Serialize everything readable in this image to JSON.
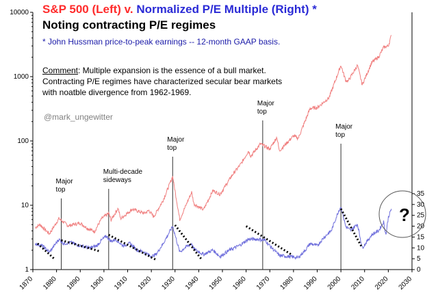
{
  "title": {
    "part_red": "S&P 500 (Left) v.",
    "part_blue": "Normalized P/E Multiple (Right) *",
    "line2": "Noting contracting P/E regimes"
  },
  "subtitle": "* John Hussman price-to-peak earnings -- 12-month GAAP basis.",
  "comment": {
    "label": "Comment",
    "text": ": Multiple expansion is the essence of a bull market. Contracting P/E regimes have characterized secular bear markets with noatble divergence from 1962-1969."
  },
  "handle": "@mark_ungewitter",
  "question_mark": "?",
  "colors": {
    "sp500": "#f07f7f",
    "pe": "#6f6fdc",
    "trend": "#000000"
  },
  "chart_data": {
    "type": "line",
    "x_range": [
      1870,
      2030
    ],
    "x_ticks": [
      1870,
      1880,
      1890,
      1900,
      1910,
      1920,
      1930,
      1940,
      1950,
      1960,
      1970,
      1980,
      1990,
      2000,
      2010,
      2020,
      2030
    ],
    "y_left": {
      "scale": "log",
      "range": [
        1,
        10000
      ],
      "ticks": [
        1,
        10,
        100,
        1000,
        10000
      ]
    },
    "y_right": {
      "scale": "linear",
      "range": [
        0,
        35
      ],
      "ticks": [
        0,
        5,
        10,
        15,
        20,
        25,
        30,
        35
      ],
      "display_range": [
        0,
        35
      ]
    },
    "series": [
      {
        "name": "S&P 500",
        "axis": "left",
        "x": [
          1871,
          1873,
          1877,
          1881,
          1885,
          1890,
          1893,
          1896,
          1899,
          1902,
          1903,
          1906,
          1907,
          1912,
          1917,
          1919,
          1921,
          1925,
          1929,
          1932,
          1937,
          1938,
          1942,
          1946,
          1949,
          1954,
          1958,
          1961,
          1962,
          1966,
          1970,
          1973,
          1974,
          1980,
          1982,
          1987,
          1990,
          1995,
          2000,
          2002,
          2003,
          2007,
          2009,
          2013,
          2016,
          2018,
          2020,
          2021.3
        ],
        "values": [
          4.5,
          5,
          3.6,
          6.2,
          4.8,
          5.3,
          4.4,
          3.9,
          6.2,
          7.5,
          5.9,
          9,
          6.2,
          8.7,
          7.5,
          8.3,
          6.6,
          12,
          28,
          6,
          16,
          10.5,
          8.5,
          17,
          14.8,
          29,
          45,
          70,
          58,
          90,
          75,
          115,
          70,
          120,
          110,
          320,
          330,
          470,
          1500,
          880,
          850,
          1500,
          750,
          1650,
          2050,
          2850,
          3000,
          4400
        ]
      },
      {
        "name": "Normalized P/E",
        "axis": "right",
        "x": [
          1871,
          1874,
          1877,
          1881,
          1883,
          1886,
          1890,
          1894,
          1897,
          1899,
          1901,
          1903,
          1905,
          1908,
          1911,
          1914,
          1917,
          1920,
          1922,
          1925,
          1928,
          1929,
          1932,
          1934,
          1937,
          1938,
          1942,
          1946,
          1949,
          1953,
          1957,
          1961,
          1965,
          1968,
          1970,
          1974,
          1978,
          1982,
          1985,
          1987,
          1990,
          1993,
          1996,
          1999,
          2000,
          2002,
          2004,
          2007,
          2009,
          2013,
          2016,
          2018,
          2019,
          2020,
          2021.3
        ],
        "values": [
          12,
          11,
          8,
          14,
          12,
          12.5,
          11,
          10,
          11,
          13.5,
          15.5,
          13,
          14,
          11,
          12,
          9,
          8,
          6,
          7,
          12,
          18,
          20,
          8,
          10,
          12,
          9.5,
          7,
          9,
          6,
          9,
          11,
          14,
          14,
          13.5,
          11,
          6.5,
          6,
          5.5,
          9,
          12,
          11,
          15,
          18,
          27,
          29,
          20,
          18,
          21,
          10,
          16,
          18,
          22,
          16,
          24,
          28
        ]
      }
    ],
    "trend_lines": [
      {
        "from": [
          1872,
          12
        ],
        "to": [
          1879,
          5
        ]
      },
      {
        "from": [
          1882,
          13.5
        ],
        "to": [
          1898,
          8.5
        ]
      },
      {
        "from": [
          1902,
          16
        ],
        "to": [
          1922,
          4.5
        ]
      },
      {
        "from": [
          1930,
          20.5
        ],
        "to": [
          1941,
          5
        ]
      },
      {
        "from": [
          1960,
          20
        ],
        "to": [
          1979,
          7
        ]
      },
      {
        "from": [
          2000,
          28
        ],
        "to": [
          2009,
          10
        ]
      }
    ],
    "annotations": [
      {
        "label": "Major top",
        "year": 1882
      },
      {
        "label": "Multi-decade sideways",
        "year": 1902
      },
      {
        "label": "Major top",
        "year": 1929
      },
      {
        "label": "Major top",
        "year": 1967
      },
      {
        "label": "Major top",
        "year": 2000
      }
    ]
  }
}
